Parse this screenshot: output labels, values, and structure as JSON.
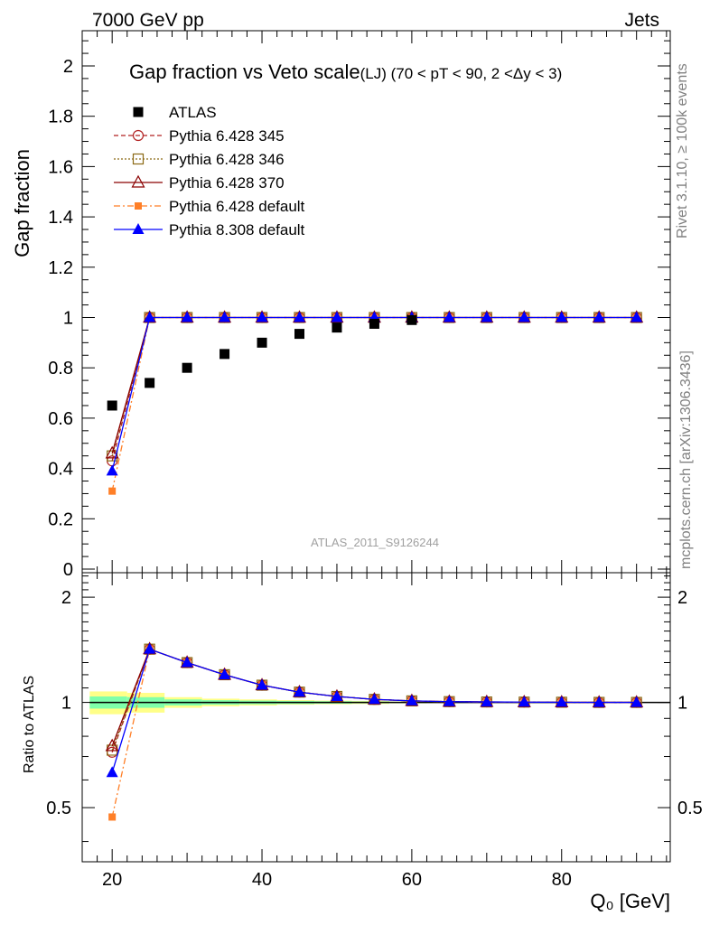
{
  "header": {
    "left": "7000 GeV pp",
    "right": "Jets"
  },
  "side_labels": {
    "top": "Rivet 3.1.10, ≥ 100k events",
    "bottom": "mcplots.cern.ch [arXiv:1306.3436]"
  },
  "chart_data": [
    {
      "type": "scatter",
      "title": "Gap fraction vs Veto scale",
      "subtitle": "(LJ) (70 < pT <  90, 2 <Δy < 3)",
      "xlabel": "",
      "ylabel": "Gap fraction",
      "ylim": [
        0,
        2.15
      ],
      "watermark": "ATLAS_2011_S9126244",
      "ytick_labels": [
        "0",
        "0.2",
        "0.4",
        "0.6",
        "0.8",
        "1",
        "1.2",
        "1.4",
        "1.6",
        "1.8",
        "2"
      ],
      "legend_position": "top-left",
      "series": [
        {
          "name": "ATLAS",
          "color": "#000000",
          "marker": "square-filled",
          "line": "none",
          "x": [
            20,
            25,
            30,
            35,
            40,
            45,
            50,
            55,
            60
          ],
          "values": [
            0.65,
            0.74,
            0.8,
            0.855,
            0.9,
            0.935,
            0.96,
            0.975,
            0.99
          ]
        },
        {
          "name": "Pythia 6.428 345",
          "color": "#b22222",
          "marker": "circle-open",
          "line": "dashed",
          "x": [
            20,
            25,
            30,
            35,
            40,
            45,
            50,
            55,
            60,
            65,
            70,
            75,
            80,
            85,
            90
          ],
          "values": [
            0.43,
            1,
            1,
            1,
            1,
            1,
            1,
            1,
            1,
            1,
            1,
            1,
            1,
            1,
            1
          ]
        },
        {
          "name": "Pythia 6.428 346",
          "color": "#8b6914",
          "marker": "square-open",
          "line": "dotted",
          "x": [
            20,
            25,
            30,
            35,
            40,
            45,
            50,
            55,
            60,
            65,
            70,
            75,
            80,
            85,
            90
          ],
          "values": [
            0.45,
            1,
            1,
            1,
            1,
            1,
            1,
            1,
            1,
            1,
            1,
            1,
            1,
            1,
            1
          ]
        },
        {
          "name": "Pythia 6.428 370",
          "color": "#8b0000",
          "marker": "triangle-open",
          "line": "solid",
          "x": [
            20,
            25,
            30,
            35,
            40,
            45,
            50,
            55,
            60,
            65,
            70,
            75,
            80,
            85,
            90
          ],
          "values": [
            0.46,
            1,
            1,
            1,
            1,
            1,
            1,
            1,
            1,
            1,
            1,
            1,
            1,
            1,
            1
          ]
        },
        {
          "name": "Pythia 6.428 default",
          "color": "#ff7f27",
          "marker": "square-filled-small",
          "line": "dashdot",
          "x": [
            20,
            25,
            30,
            35,
            40,
            45,
            50,
            55,
            60,
            65,
            70,
            75,
            80,
            85,
            90
          ],
          "values": [
            0.31,
            1,
            1,
            1,
            1,
            1,
            1,
            1,
            1,
            1,
            1,
            1,
            1,
            1,
            1
          ]
        },
        {
          "name": "Pythia 8.308 default",
          "color": "#0000ff",
          "marker": "triangle-filled",
          "line": "solid",
          "x": [
            20,
            25,
            30,
            35,
            40,
            45,
            50,
            55,
            60,
            65,
            70,
            75,
            80,
            85,
            90
          ],
          "values": [
            0.39,
            1,
            1,
            1,
            1,
            1,
            1,
            1,
            1,
            1,
            1,
            1,
            1,
            1,
            1
          ]
        }
      ]
    },
    {
      "type": "scatter",
      "title": "",
      "xlabel": "Q₀ [GeV]",
      "ylabel": "Ratio to ATLAS",
      "xlim": [
        16,
        95
      ],
      "ylim": [
        0.35,
        2.35
      ],
      "ytick_labels": [
        "0.5",
        "1",
        "2"
      ],
      "xtick_labels": [
        "20",
        "40",
        "60",
        "80"
      ],
      "band": {
        "x_edges": [
          17,
          22,
          27,
          32,
          37,
          42,
          47,
          52,
          57,
          62,
          67
        ],
        "inner_half_width": [
          0.04,
          0.035,
          0.02,
          0.015,
          0.012,
          0.01,
          0.008,
          0.006,
          0.004,
          0.003
        ],
        "outer_half_width": [
          0.075,
          0.065,
          0.035,
          0.025,
          0.02,
          0.015,
          0.012,
          0.01,
          0.006,
          0.004
        ],
        "inner_color": "#7fffaa",
        "outer_color": "#ffff88"
      },
      "series": [
        {
          "name": "Pythia 6.428 345",
          "x": [
            20,
            25,
            30,
            35,
            40,
            45,
            50,
            55,
            60,
            65,
            70,
            75,
            80,
            85,
            90
          ],
          "values": [
            0.72,
            1.42,
            1.3,
            1.2,
            1.12,
            1.07,
            1.04,
            1.02,
            1.01,
            1.005,
            1.003,
            1.002,
            1.001,
            1.0,
            1.0
          ]
        },
        {
          "name": "Pythia 6.428 346",
          "x": [
            20,
            25,
            30,
            35,
            40,
            45,
            50,
            55,
            60,
            65,
            70,
            75,
            80,
            85,
            90
          ],
          "values": [
            0.73,
            1.42,
            1.3,
            1.2,
            1.12,
            1.07,
            1.04,
            1.02,
            1.01,
            1.005,
            1.003,
            1.002,
            1.001,
            1.0,
            1.0
          ]
        },
        {
          "name": "Pythia 6.428 370",
          "x": [
            20,
            25,
            30,
            35,
            40,
            45,
            50,
            55,
            60,
            65,
            70,
            75,
            80,
            85,
            90
          ],
          "values": [
            0.75,
            1.42,
            1.3,
            1.2,
            1.12,
            1.07,
            1.04,
            1.02,
            1.01,
            1.005,
            1.003,
            1.002,
            1.001,
            1.0,
            1.0
          ]
        },
        {
          "name": "Pythia 6.428 default",
          "x": [
            20,
            25,
            30,
            35,
            40,
            45,
            50,
            55,
            60,
            65,
            70,
            75,
            80,
            85,
            90
          ],
          "values": [
            0.47,
            1.42,
            1.3,
            1.2,
            1.12,
            1.07,
            1.04,
            1.02,
            1.01,
            1.005,
            1.003,
            1.002,
            1.001,
            1.0,
            1.0
          ]
        },
        {
          "name": "Pythia 8.308 default",
          "x": [
            20,
            25,
            30,
            35,
            40,
            45,
            50,
            55,
            60,
            65,
            70,
            75,
            80,
            85,
            90
          ],
          "values": [
            0.63,
            1.42,
            1.3,
            1.2,
            1.12,
            1.07,
            1.04,
            1.02,
            1.01,
            1.005,
            1.003,
            1.002,
            1.001,
            1.0,
            1.0
          ]
        }
      ]
    }
  ]
}
